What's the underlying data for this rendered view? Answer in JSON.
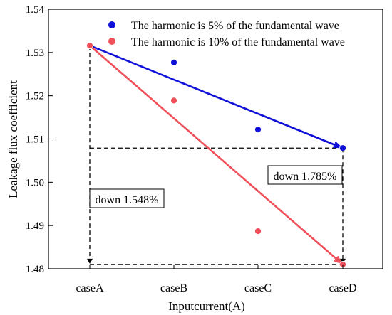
{
  "chart_data": {
    "type": "scatter",
    "title": "",
    "xlabel": "Inputcurrent(A)",
    "ylabel": "Leakage flux coefficient",
    "categories": [
      "caseA",
      "caseB",
      "caseC",
      "caseD"
    ],
    "ylim": [
      1.48,
      1.54
    ],
    "yticks": [
      "1.48",
      "1.49",
      "1.50",
      "1.51",
      "1.52",
      "1.53",
      "1.54"
    ],
    "grid": false,
    "legend_position": "top-right",
    "series": [
      {
        "name": "The harmonic is 5% of the fundamental wave",
        "color": "#1010d8",
        "values": [
          1.5316,
          1.5277,
          1.5122,
          1.5079
        ]
      },
      {
        "name": "The harmonic is 10% of the fundamental wave",
        "color": "#f0505a",
        "values": [
          1.5316,
          1.5189,
          1.4887,
          1.481
        ]
      }
    ],
    "annotations": [
      {
        "text": "down 1.548%",
        "applies_to": "caseA"
      },
      {
        "text": "down 1.785%",
        "applies_to": "caseD"
      }
    ]
  }
}
